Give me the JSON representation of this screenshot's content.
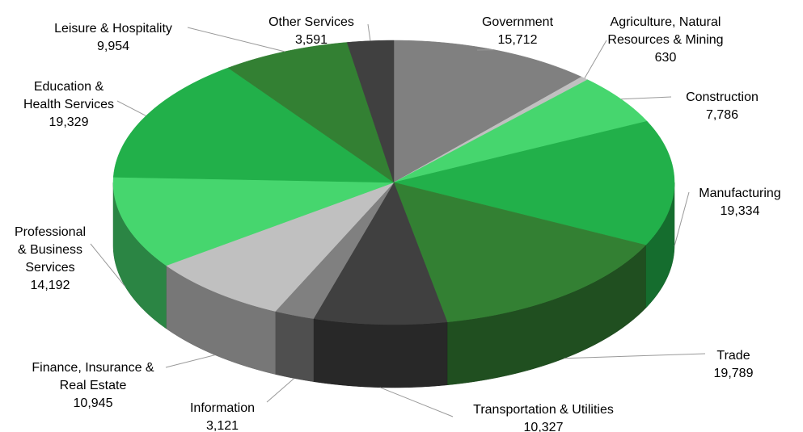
{
  "chart_data": {
    "type": "pie3d",
    "categories": [
      "Government",
      "Agriculture, Natural Resources & Mining",
      "Construction",
      "Manufacturing",
      "Trade",
      "Transportation & Utilities",
      "Information",
      "Finance, Insurance & Real Estate",
      "Professional & Business Services",
      "Education & Health Services",
      "Leisure & Hospitality",
      "Other Services"
    ],
    "values": [
      15712,
      630,
      7786,
      19334,
      19789,
      10327,
      3121,
      10945,
      14192,
      19329,
      9954,
      3591
    ],
    "value_labels": [
      "15,712",
      "630",
      "7,786",
      "19,334",
      "19,789",
      "10,327",
      "3,121",
      "10,945",
      "14,192",
      "19,329",
      "9,954",
      "3,591"
    ],
    "colors": [
      "#808080",
      "#c0c0c0",
      "#46d66e",
      "#22b04a",
      "#338033",
      "#404040",
      "#808080",
      "#c0c0c0",
      "#46d66e",
      "#22b04a",
      "#338033",
      "#404040"
    ]
  }
}
